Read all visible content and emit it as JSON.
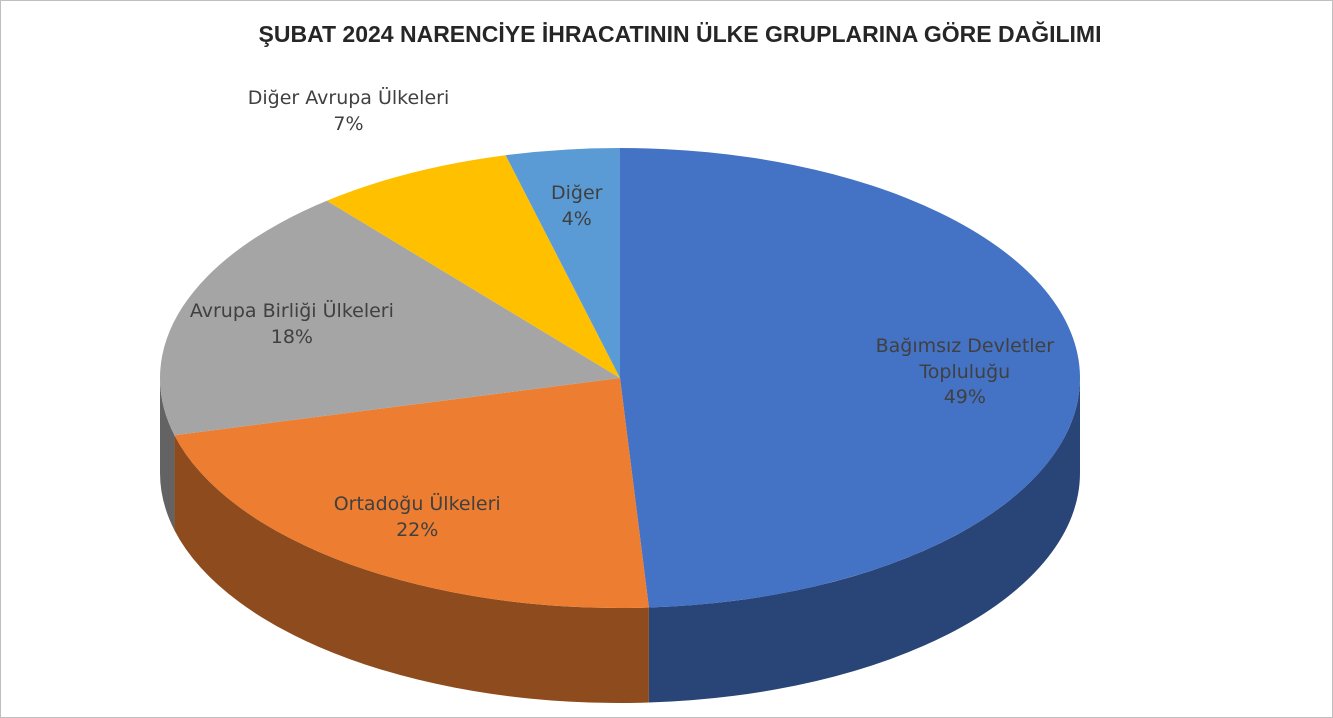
{
  "chart_data": {
    "type": "pie3d",
    "title": "ŞUBAT 2024 NARENCİYE İHRACATININ ÜLKE GRUPLARINA GÖRE DAĞILIMI",
    "categories": [
      "Bağımsız Devletler Topluluğu",
      "Ortadoğu Ülkeleri",
      "Avrupa Birliği Ülkeleri",
      "Diğer Avrupa Ülkeleri",
      "Diğer"
    ],
    "values": [
      49,
      22,
      18,
      7,
      4
    ],
    "value_labels": [
      "49%",
      "22%",
      "18%",
      "7%",
      "4%"
    ],
    "colors": [
      "#4472c4",
      "#ed7d31",
      "#a5a5a5",
      "#ffc000",
      "#5b9bd5"
    ]
  }
}
